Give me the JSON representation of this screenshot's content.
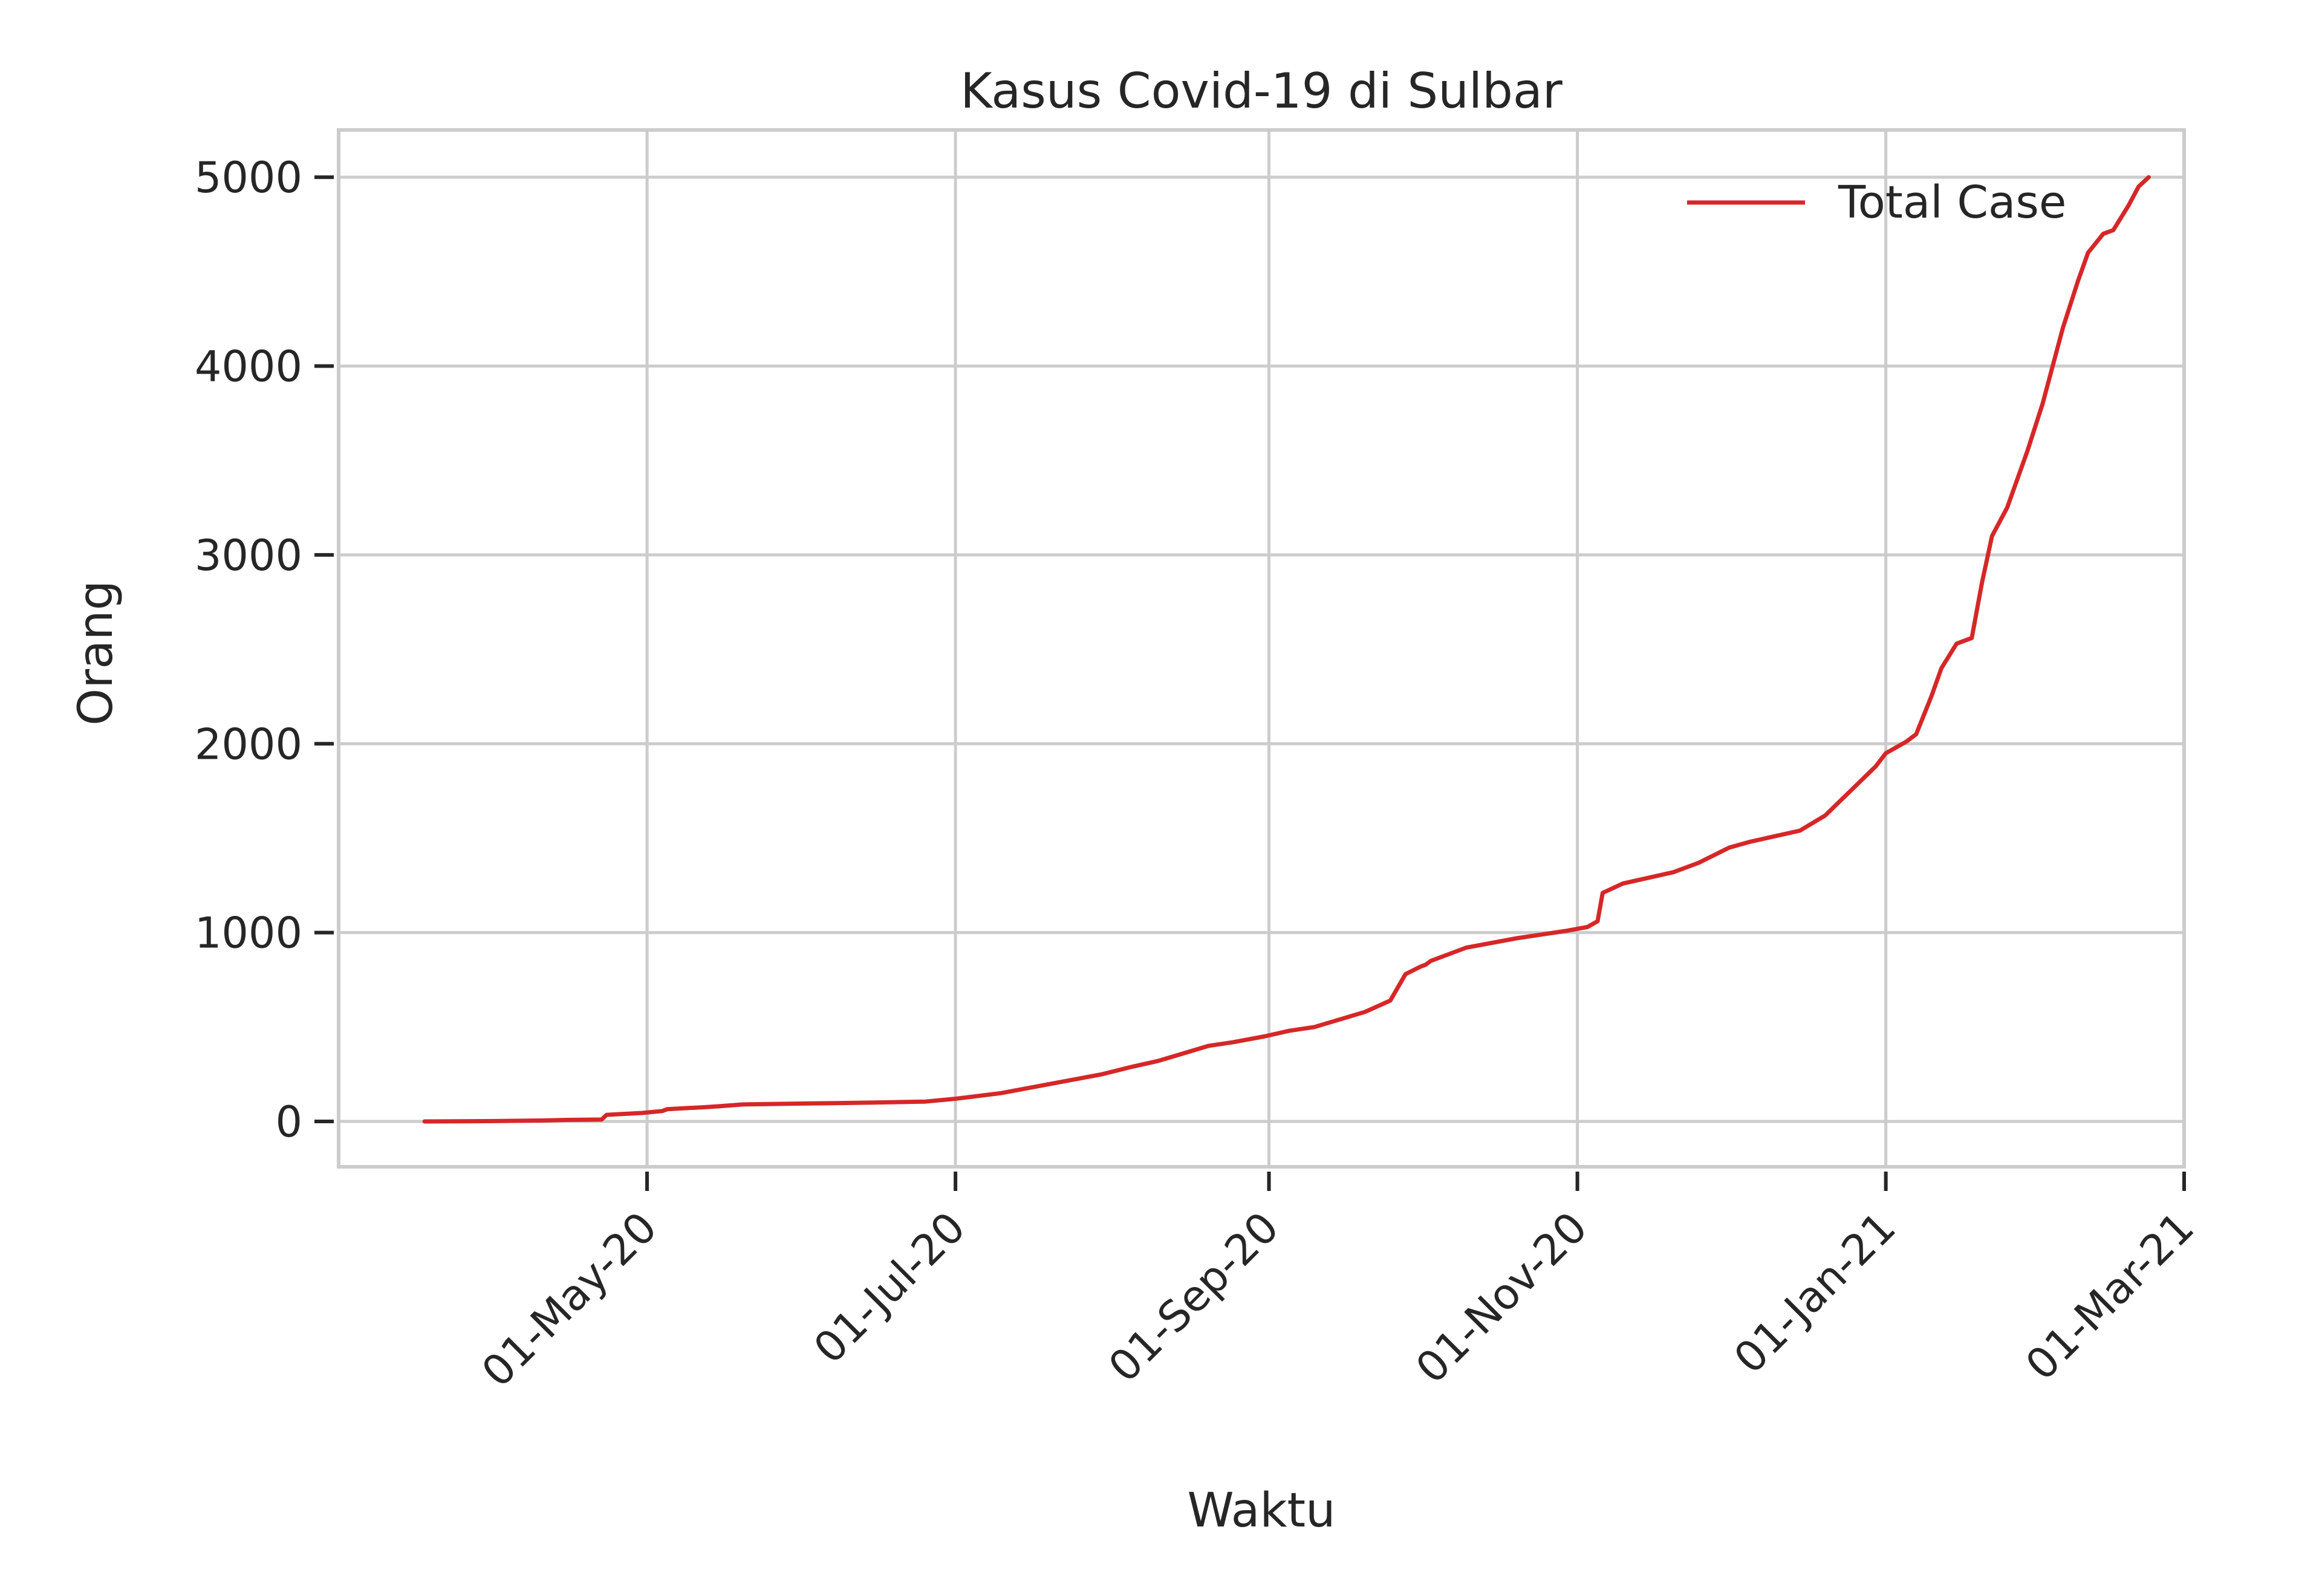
{
  "chart_data": {
    "type": "line",
    "title": "Kasus Covid-19 di Sulbar",
    "xlabel": "Waktu",
    "ylabel": "Orang",
    "x_axis_type": "date",
    "x_date_format": "DD-Mon-YY",
    "xlim": [
      "2020-03-01",
      "2021-03-01"
    ],
    "ylim": [
      -240,
      5250
    ],
    "x_ticks": [
      "2020-05-01",
      "2020-07-01",
      "2020-09-01",
      "2020-11-01",
      "2021-01-01",
      "2021-03-01"
    ],
    "x_tick_labels": [
      "01-May-20",
      "01-Jul-20",
      "01-Sep-20",
      "01-Nov-20",
      "01-Jan-21",
      "01-Mar-21"
    ],
    "x_tick_rotation_deg": 45,
    "y_ticks": [
      0,
      1000,
      2000,
      3000,
      4000,
      5000
    ],
    "y_tick_labels": [
      "0",
      "1000",
      "2000",
      "3000",
      "4000",
      "5000"
    ],
    "grid": true,
    "legend_position": "top-right",
    "series": [
      {
        "name": "Total Case",
        "color": "#d62728",
        "x": [
          "2020-03-18",
          "2020-03-25",
          "2020-04-01",
          "2020-04-10",
          "2020-04-15",
          "2020-04-22",
          "2020-04-23",
          "2020-04-30",
          "2020-05-04",
          "2020-05-05",
          "2020-05-12",
          "2020-05-15",
          "2020-05-20",
          "2020-06-01",
          "2020-06-15",
          "2020-06-25",
          "2020-07-01",
          "2020-07-10",
          "2020-07-20",
          "2020-07-30",
          "2020-08-05",
          "2020-08-10",
          "2020-08-15",
          "2020-08-20",
          "2020-08-25",
          "2020-08-31",
          "2020-09-05",
          "2020-09-10",
          "2020-09-20",
          "2020-09-25",
          "2020-09-28",
          "2020-10-01",
          "2020-10-02",
          "2020-10-03",
          "2020-10-10",
          "2020-10-20",
          "2020-10-30",
          "2020-11-03",
          "2020-11-05",
          "2020-11-06",
          "2020-11-10",
          "2020-11-20",
          "2020-11-25",
          "2020-12-01",
          "2020-12-05",
          "2020-12-10",
          "2020-12-15",
          "2020-12-20",
          "2020-12-25",
          "2020-12-30",
          "2021-01-01",
          "2021-01-05",
          "2021-01-07",
          "2021-01-10",
          "2021-01-12",
          "2021-01-15",
          "2021-01-18",
          "2021-01-20",
          "2021-01-22",
          "2021-01-25",
          "2021-01-29",
          "2021-02-01",
          "2021-02-05",
          "2021-02-08",
          "2021-02-10",
          "2021-02-13",
          "2021-02-15",
          "2021-02-18",
          "2021-02-20",
          "2021-02-22"
        ],
        "values": [
          0,
          1,
          2,
          5,
          8,
          10,
          35,
          45,
          55,
          65,
          75,
          80,
          90,
          95,
          100,
          105,
          120,
          150,
          200,
          250,
          290,
          320,
          360,
          400,
          420,
          450,
          480,
          500,
          580,
          640,
          780,
          820,
          830,
          850,
          920,
          970,
          1010,
          1030,
          1060,
          1210,
          1260,
          1320,
          1370,
          1450,
          1480,
          1510,
          1540,
          1620,
          1750,
          1880,
          1950,
          2010,
          2050,
          2250,
          2400,
          2530,
          2560,
          2850,
          3100,
          3250,
          3550,
          3800,
          4200,
          4450,
          4600,
          4700,
          4720,
          4850,
          4950,
          5000
        ]
      }
    ]
  }
}
